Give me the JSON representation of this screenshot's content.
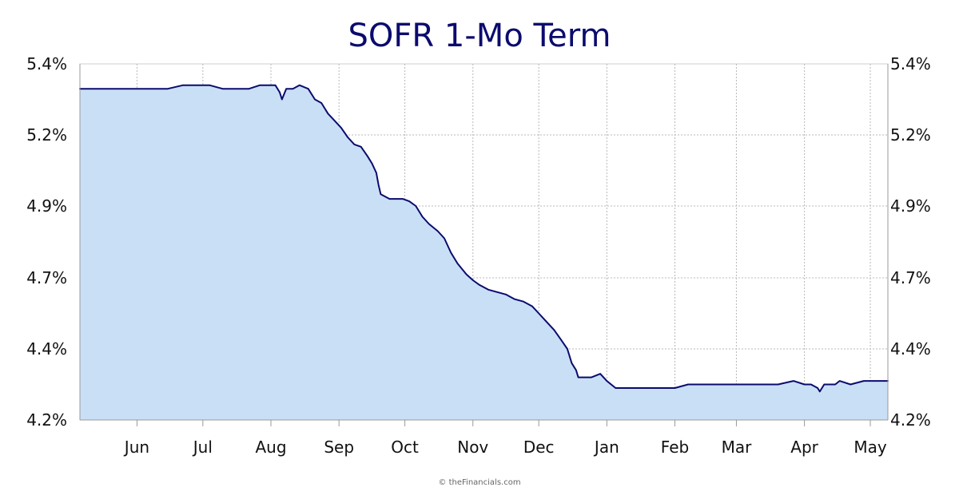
{
  "chart_data": {
    "type": "area",
    "title": "SOFR 1-Mo Term",
    "xlabel": "",
    "ylabel": "",
    "ylim": [
      4.2,
      5.4
    ],
    "xlim": [
      "2024-05-06",
      "2025-05-09"
    ],
    "grid": true,
    "y_axis_sides": [
      "left",
      "right"
    ],
    "y_ticks": [
      {
        "value": 4.2,
        "label": "4.2%"
      },
      {
        "value": 4.4,
        "label": "4.4%"
      },
      {
        "value": 4.7,
        "label": "4.7%"
      },
      {
        "value": 4.9,
        "label": "4.9%"
      },
      {
        "value": 5.2,
        "label": "5.2%"
      },
      {
        "value": 5.4,
        "label": "5.4%"
      }
    ],
    "x_ticks": [
      {
        "value": "2024-06-01",
        "label": "Jun"
      },
      {
        "value": "2024-07-01",
        "label": "Jul"
      },
      {
        "value": "2024-08-01",
        "label": "Aug"
      },
      {
        "value": "2024-09-01",
        "label": "Sep"
      },
      {
        "value": "2024-10-01",
        "label": "Oct"
      },
      {
        "value": "2024-11-01",
        "label": "Nov"
      },
      {
        "value": "2024-12-01",
        "label": "Dec"
      },
      {
        "value": "2025-01-01",
        "label": "Jan"
      },
      {
        "value": "2025-02-01",
        "label": "Feb"
      },
      {
        "value": "2025-03-01",
        "label": "Mar"
      },
      {
        "value": "2025-04-01",
        "label": "Apr"
      },
      {
        "value": "2025-05-01",
        "label": "May"
      }
    ],
    "series": [
      {
        "x": [
          "2024-05-06",
          "2024-05-11",
          "2024-05-16",
          "2024-05-21",
          "2024-05-26",
          "2024-06-01",
          "2024-06-08",
          "2024-06-15",
          "2024-06-22",
          "2024-06-29",
          "2024-07-04",
          "2024-07-10",
          "2024-07-15",
          "2024-07-22",
          "2024-07-27",
          "2024-08-01",
          "2024-08-03",
          "2024-08-05",
          "2024-08-06",
          "2024-08-08",
          "2024-08-11",
          "2024-08-14",
          "2024-08-18",
          "2024-08-21",
          "2024-08-24",
          "2024-08-27",
          "2024-08-30",
          "2024-09-02",
          "2024-09-05",
          "2024-09-08",
          "2024-09-11",
          "2024-09-14",
          "2024-09-16",
          "2024-09-18",
          "2024-09-19",
          "2024-09-20",
          "2024-09-24",
          "2024-09-26",
          "2024-09-28",
          "2024-09-30",
          "2024-10-03",
          "2024-10-06",
          "2024-10-09",
          "2024-10-12",
          "2024-10-16",
          "2024-10-19",
          "2024-10-22",
          "2024-10-25",
          "2024-10-29",
          "2024-11-01",
          "2024-11-04",
          "2024-11-08",
          "2024-11-12",
          "2024-11-16",
          "2024-11-20",
          "2024-11-24",
          "2024-11-28",
          "2024-12-01",
          "2024-12-04",
          "2024-12-08",
          "2024-12-11",
          "2024-12-14",
          "2024-12-16",
          "2024-12-18",
          "2024-12-19",
          "2024-12-22",
          "2024-12-25",
          "2024-12-29",
          "2025-01-01",
          "2025-01-05",
          "2025-01-08",
          "2025-01-12",
          "2025-01-17",
          "2025-01-22",
          "2025-01-27",
          "2025-02-01",
          "2025-02-07",
          "2025-02-13",
          "2025-02-19",
          "2025-02-25",
          "2025-03-02",
          "2025-03-08",
          "2025-03-12",
          "2025-03-14",
          "2025-03-20",
          "2025-03-27",
          "2025-04-01",
          "2025-04-04",
          "2025-04-07",
          "2025-04-08",
          "2025-04-10",
          "2025-04-15",
          "2025-04-17",
          "2025-04-22",
          "2025-04-28",
          "2025-05-01",
          "2025-05-05",
          "2025-05-07",
          "2025-05-09"
        ],
        "values": [
          5.33,
          5.33,
          5.33,
          5.33,
          5.33,
          5.33,
          5.33,
          5.33,
          5.34,
          5.34,
          5.34,
          5.33,
          5.33,
          5.33,
          5.34,
          5.34,
          5.34,
          5.32,
          5.3,
          5.33,
          5.33,
          5.34,
          5.33,
          5.3,
          5.29,
          5.26,
          5.24,
          5.22,
          5.19,
          5.16,
          5.15,
          5.11,
          5.08,
          5.04,
          4.99,
          4.95,
          4.93,
          4.93,
          4.93,
          4.93,
          4.92,
          4.9,
          4.87,
          4.85,
          4.83,
          4.81,
          4.77,
          4.74,
          4.71,
          4.69,
          4.67,
          4.65,
          4.64,
          4.63,
          4.61,
          4.6,
          4.58,
          4.55,
          4.52,
          4.48,
          4.44,
          4.4,
          4.36,
          4.34,
          4.32,
          4.32,
          4.32,
          4.33,
          4.31,
          4.29,
          4.29,
          4.29,
          4.29,
          4.29,
          4.29,
          4.29,
          4.3,
          4.3,
          4.3,
          4.3,
          4.3,
          4.3,
          4.3,
          4.3,
          4.3,
          4.31,
          4.3,
          4.3,
          4.29,
          4.28,
          4.3,
          4.3,
          4.31,
          4.3,
          4.31,
          4.31,
          4.31,
          4.31,
          4.31
        ]
      }
    ],
    "colors": {
      "line": "#0b0b6e",
      "area_fill": "#c9dff6",
      "title": "#0b0b6e",
      "grid": "#b8b8b8",
      "axis": "#999999"
    }
  },
  "footer": {
    "credit": "© theFinancials.com"
  }
}
